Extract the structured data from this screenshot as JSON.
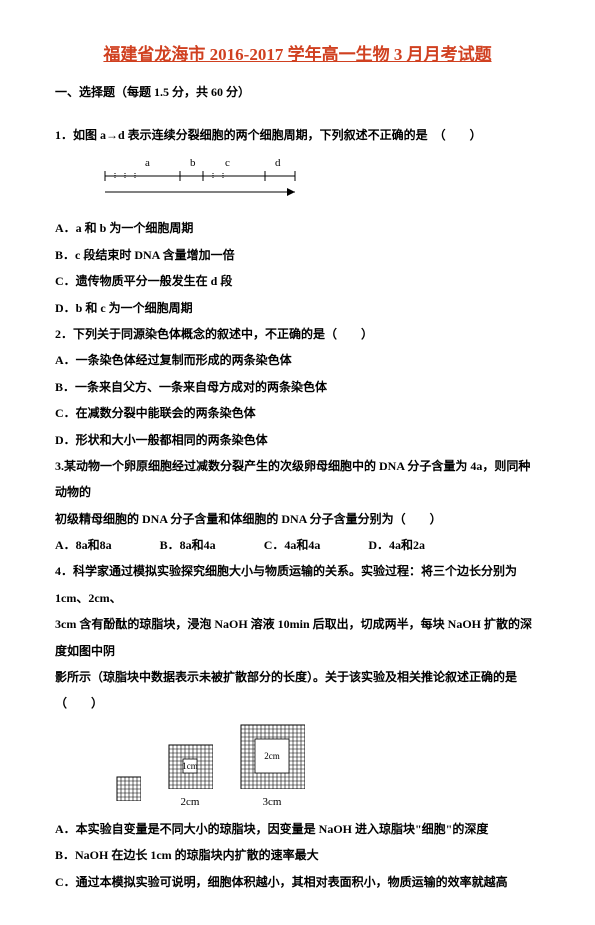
{
  "title": "福建省龙海市 2016-2017 学年高一生物 3 月月考试题",
  "sectionHead": "一、选择题（每题 1.5 分，共 60 分）",
  "q1": "1．如图 a→d 表示连续分裂细胞的两个细胞周期，下列叙述不正确的是　（　　）",
  "diagram1_labels": {
    "a": "a",
    "b": "b",
    "c": "c",
    "d": "d"
  },
  "q1A": "A．a 和 b 为一个细胞周期",
  "q1B": "B．c 段结束时 DNA 含量增加一倍",
  "q1C": "C．遗传物质平分一般发生在 d 段",
  "q1D": "D．b 和 c 为一个细胞周期",
  "q2": "2．下列关于同源染色体概念的叙述中，不正确的是（　　）",
  "q2A": "A．一条染色体经过复制而形成的两条染色体",
  "q2B": "B．一条来自父方、一条来自母方成对的两条染色体",
  "q2C": "C．在减数分裂中能联会的两条染色体",
  "q2D": "D．形状和大小一般都相同的两条染色体",
  "q3a": "3.某动物一个卵原细胞经过减数分裂产生的次级卵母细胞中的 DNA 分子含量为 4a，则同种动物的",
  "q3b": "初级精母细胞的 DNA 分子含量和体细胞的 DNA 分子含量分别为（　　）",
  "q3opts": {
    "A": "A．8a和8a",
    "B": "B．8a和4a",
    "C": "C．4a和4a",
    "D": "D．4a和2a"
  },
  "q4a": "4．科学家通过模拟实验探究细胞大小与物质运输的关系。实验过程：将三个边长分别为 1cm、2cm、",
  "q4b": "3cm 含有酚酞的琼脂块，浸泡 NaOH 溶液 10min 后取出，切成两半，每块 NaOH 扩散的深度如图中阴",
  "q4c": "影所示（琼脂块中数据表示未被扩散部分的长度）。关于该实验及相关推论叙述正确的是　（　　）",
  "cubes": {
    "c1_size": 22,
    "c1_inner": 0,
    "c1_label": "",
    "c2_size": 42,
    "c2_inner": 14,
    "c2_inner_label": "1cm",
    "c2_label": "2cm",
    "c3_size": 62,
    "c3_inner": 34,
    "c3_inner_label": "2cm",
    "c3_label": "3cm"
  },
  "q4A": "A．本实验自变量是不同大小的琼脂块，因变量是 NaOH 进入琼脂块\"细胞\"的深度",
  "q4B": "B．NaOH 在边长 1cm 的琼脂块内扩散的速率最大",
  "q4C": "C．通过本模拟实验可说明，细胞体积越小，其相对表面积小，物质运输的效率就越高",
  "colors": {
    "title": "#d04020",
    "text": "#000000",
    "grid": "#000000"
  }
}
